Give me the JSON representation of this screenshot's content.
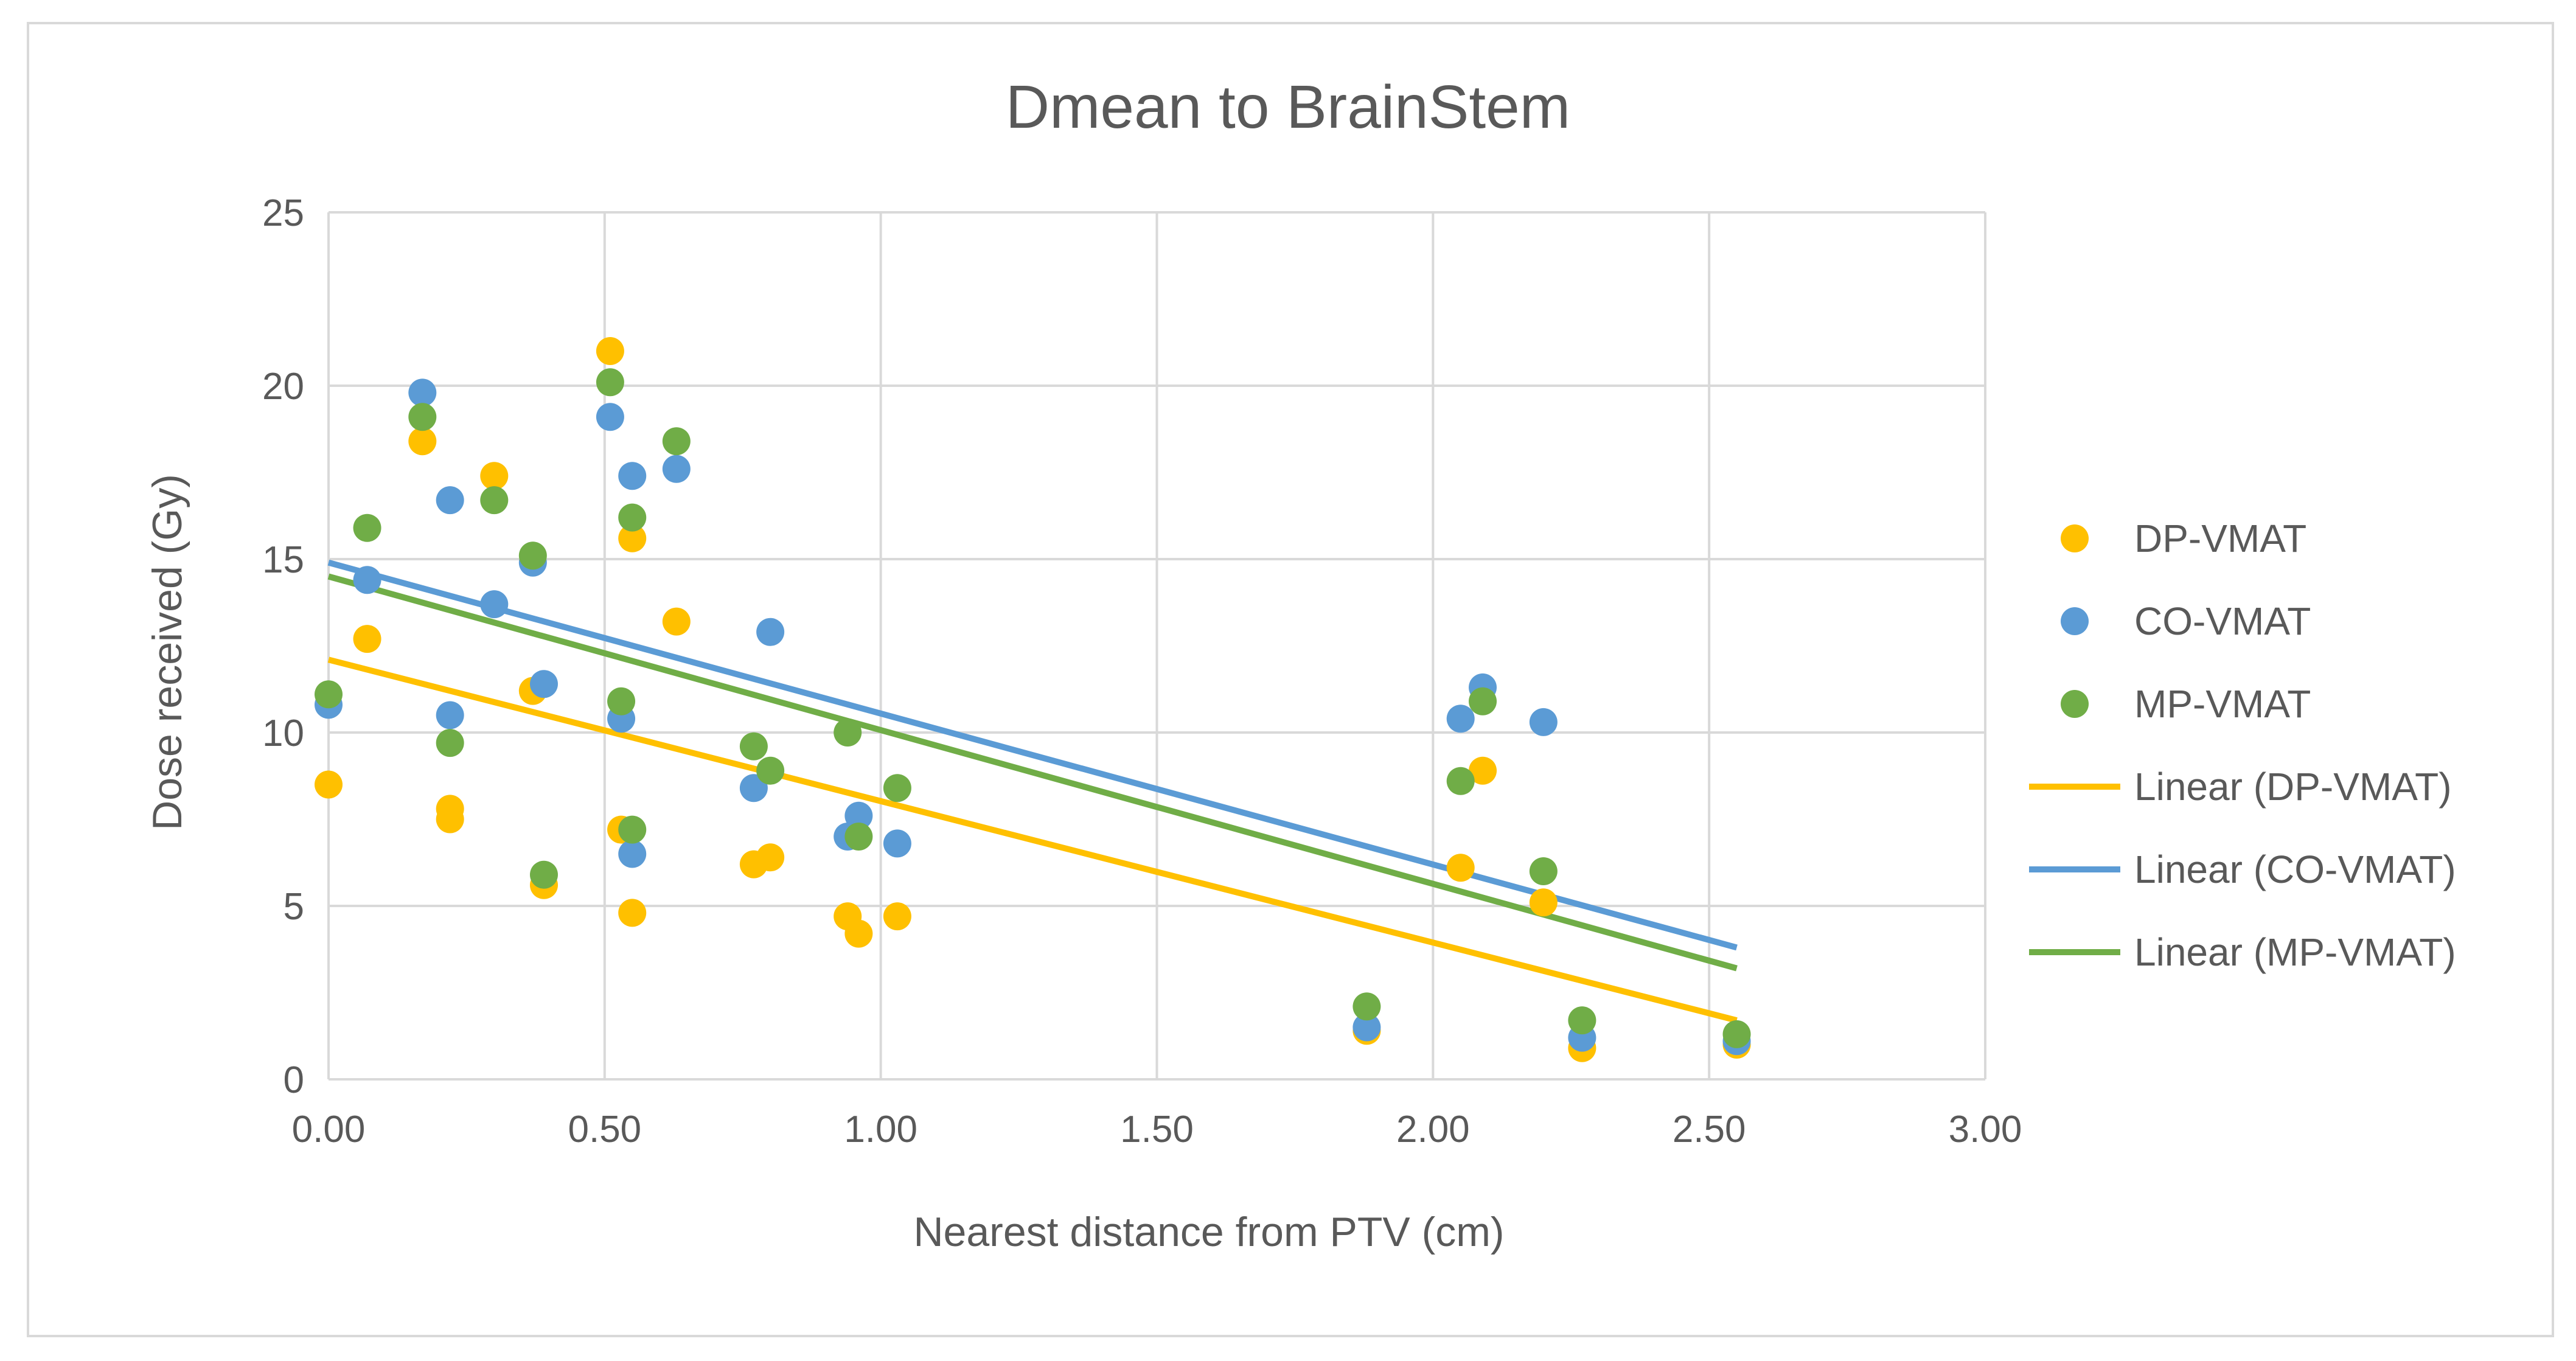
{
  "chart_data": {
    "type": "scatter",
    "title": "Dmean to BrainStem",
    "xlabel": "Nearest distance from PTV (cm)",
    "ylabel": "Dose received (Gy)",
    "xlim": [
      0,
      3
    ],
    "ylim": [
      0,
      25
    ],
    "x_ticks": [
      "0.00",
      "0.50",
      "1.00",
      "1.50",
      "2.00",
      "2.50",
      "3.00"
    ],
    "y_ticks": [
      "0",
      "5",
      "10",
      "15",
      "20",
      "25"
    ],
    "grid": true,
    "legend_position": "right",
    "series": [
      {
        "name": "DP-VMAT",
        "color": "#FFC000",
        "points": [
          [
            0.0,
            8.5
          ],
          [
            0.07,
            12.7
          ],
          [
            0.17,
            18.4
          ],
          [
            0.22,
            7.8
          ],
          [
            0.22,
            7.5
          ],
          [
            0.3,
            17.4
          ],
          [
            0.37,
            11.2
          ],
          [
            0.39,
            5.6
          ],
          [
            0.51,
            21.0
          ],
          [
            0.53,
            7.2
          ],
          [
            0.55,
            15.6
          ],
          [
            0.55,
            4.8
          ],
          [
            0.63,
            13.2
          ],
          [
            0.77,
            6.2
          ],
          [
            0.8,
            6.4
          ],
          [
            0.94,
            4.7
          ],
          [
            0.96,
            4.2
          ],
          [
            1.03,
            4.7
          ],
          [
            1.88,
            1.4
          ],
          [
            2.05,
            6.1
          ],
          [
            2.09,
            8.9
          ],
          [
            2.2,
            5.1
          ],
          [
            2.27,
            0.9
          ],
          [
            2.55,
            1.0
          ]
        ]
      },
      {
        "name": "CO-VMAT",
        "color": "#5B9BD5",
        "points": [
          [
            0.0,
            10.8
          ],
          [
            0.07,
            14.4
          ],
          [
            0.17,
            19.8
          ],
          [
            0.22,
            16.7
          ],
          [
            0.22,
            10.5
          ],
          [
            0.3,
            13.7
          ],
          [
            0.37,
            14.9
          ],
          [
            0.39,
            11.4
          ],
          [
            0.51,
            19.1
          ],
          [
            0.53,
            10.4
          ],
          [
            0.55,
            17.4
          ],
          [
            0.55,
            6.5
          ],
          [
            0.63,
            17.6
          ],
          [
            0.77,
            8.4
          ],
          [
            0.8,
            12.9
          ],
          [
            0.94,
            7.0
          ],
          [
            0.96,
            7.6
          ],
          [
            1.03,
            6.8
          ],
          [
            1.88,
            1.5
          ],
          [
            2.05,
            10.4
          ],
          [
            2.09,
            11.3
          ],
          [
            2.2,
            10.3
          ],
          [
            2.27,
            1.2
          ],
          [
            2.55,
            1.1
          ]
        ]
      },
      {
        "name": "MP-VMAT",
        "color": "#70AD47",
        "points": [
          [
            0.0,
            11.1
          ],
          [
            0.07,
            15.9
          ],
          [
            0.17,
            19.1
          ],
          [
            0.22,
            9.7
          ],
          [
            0.3,
            16.7
          ],
          [
            0.37,
            15.1
          ],
          [
            0.39,
            5.9
          ],
          [
            0.51,
            20.1
          ],
          [
            0.53,
            10.9
          ],
          [
            0.55,
            16.2
          ],
          [
            0.55,
            7.2
          ],
          [
            0.63,
            18.4
          ],
          [
            0.77,
            9.6
          ],
          [
            0.8,
            8.9
          ],
          [
            0.94,
            10.0
          ],
          [
            0.96,
            7.0
          ],
          [
            1.03,
            8.4
          ],
          [
            1.88,
            2.1
          ],
          [
            2.05,
            8.6
          ],
          [
            2.09,
            10.9
          ],
          [
            2.2,
            6.0
          ],
          [
            2.27,
            1.7
          ],
          [
            2.55,
            1.3
          ]
        ]
      }
    ],
    "trendlines": [
      {
        "name": "Linear (DP-VMAT)",
        "color": "#FFC000",
        "x": [
          0.0,
          2.55
        ],
        "y": [
          12.1,
          1.7
        ]
      },
      {
        "name": "Linear (CO-VMAT)",
        "color": "#5B9BD5",
        "x": [
          0.0,
          2.55
        ],
        "y": [
          14.9,
          3.8
        ]
      },
      {
        "name": "Linear (MP-VMAT)",
        "color": "#70AD47",
        "x": [
          0.0,
          2.55
        ],
        "y": [
          14.5,
          3.2
        ]
      }
    ]
  }
}
